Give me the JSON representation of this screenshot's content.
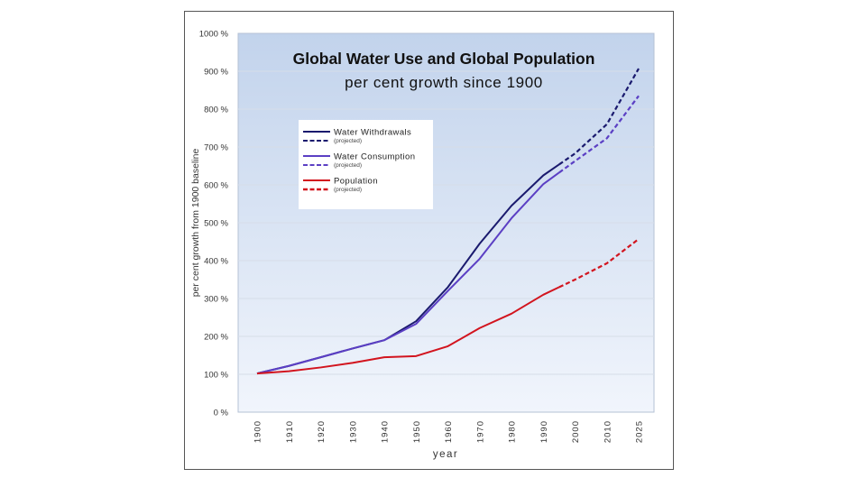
{
  "chart_data": {
    "type": "line",
    "title": "Global Water Use and Global Population",
    "subtitle": "per cent growth since 1900",
    "xlabel": "year",
    "ylabel": "per cent growth from 1900 baseline",
    "categories": [
      "1900",
      "1910",
      "1920",
      "1930",
      "1940",
      "1950",
      "1960",
      "1970",
      "1980",
      "1990",
      "2000",
      "2010",
      "2025"
    ],
    "ylim": [
      0,
      1000
    ],
    "yticks": [
      0,
      100,
      200,
      300,
      400,
      500,
      600,
      700,
      800,
      900,
      1000
    ],
    "ytick_labels": [
      "0 %",
      "100 %",
      "200 %",
      "300 %",
      "400 %",
      "500 %",
      "600 %",
      "700 %",
      "800 %",
      "900 %",
      "1000 %"
    ],
    "grid": true,
    "legend_position": "upper-left-inside",
    "projection_starts_after": "1990",
    "series": [
      {
        "name": "Water Withdrawals",
        "projected_label": "(projected)",
        "color": "#1a1a6e",
        "values": [
          102,
          122,
          145,
          168,
          190,
          240,
          330,
          445,
          545,
          625,
          683,
          760,
          907
        ]
      },
      {
        "name": "Water Consumption",
        "projected_label": "(projected)",
        "color": "#5b3fc4",
        "values": [
          102,
          122,
          145,
          168,
          190,
          233,
          320,
          405,
          512,
          602,
          663,
          723,
          835
        ]
      },
      {
        "name": "Population",
        "projected_label": "(projected)",
        "color": "#d2141e",
        "values": [
          102,
          108,
          118,
          130,
          145,
          148,
          174,
          222,
          260,
          310,
          350,
          393,
          457
        ]
      }
    ]
  },
  "colors": {
    "plot_bg_top": "#c2d3ec",
    "plot_bg_bottom": "#f1f5fc",
    "gridline": "#d6dde8"
  }
}
